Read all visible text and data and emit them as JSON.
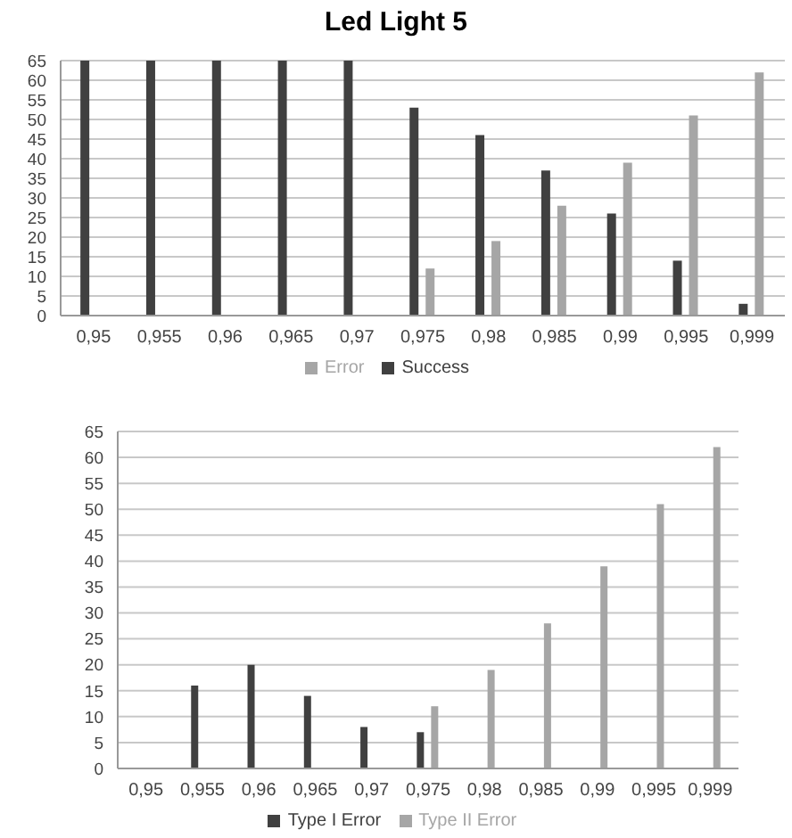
{
  "chart_data": [
    {
      "type": "bar",
      "title": "Led Light 5",
      "categories": [
        "0,95",
        "0,955",
        "0,96",
        "0,965",
        "0,97",
        "0,975",
        "0,98",
        "0,985",
        "0,99",
        "0,995",
        "0,999"
      ],
      "series": [
        {
          "name": "Success",
          "color": "#404040",
          "values": [
            65,
            65,
            65,
            65,
            65,
            53,
            46,
            37,
            26,
            14,
            3
          ]
        },
        {
          "name": "Error",
          "color": "#a6a6a6",
          "values": [
            0,
            0,
            0,
            0,
            0,
            12,
            19,
            28,
            39,
            51,
            62
          ]
        }
      ],
      "ylim": [
        0,
        65
      ],
      "yticks": [
        0,
        5,
        10,
        15,
        20,
        25,
        30,
        35,
        40,
        45,
        50,
        55,
        60,
        65
      ],
      "grid": "y",
      "legend": "bottom"
    },
    {
      "type": "bar",
      "categories": [
        "0,95",
        "0,955",
        "0,96",
        "0,965",
        "0,97",
        "0,975",
        "0,98",
        "0,985",
        "0,99",
        "0,995",
        "0,999"
      ],
      "series": [
        {
          "name": "Type I Error",
          "color": "#404040",
          "values": [
            0,
            16,
            20,
            14,
            8,
            7,
            0,
            0,
            0,
            0,
            0
          ]
        },
        {
          "name": "Type II Error",
          "color": "#a6a6a6",
          "values": [
            0,
            0,
            0,
            0,
            0,
            12,
            19,
            28,
            39,
            51,
            62
          ]
        }
      ],
      "ylim": [
        0,
        65
      ],
      "yticks": [
        0,
        5,
        10,
        15,
        20,
        25,
        30,
        35,
        40,
        45,
        50,
        55,
        60,
        65
      ],
      "grid": "y",
      "legend": "bottom"
    }
  ]
}
